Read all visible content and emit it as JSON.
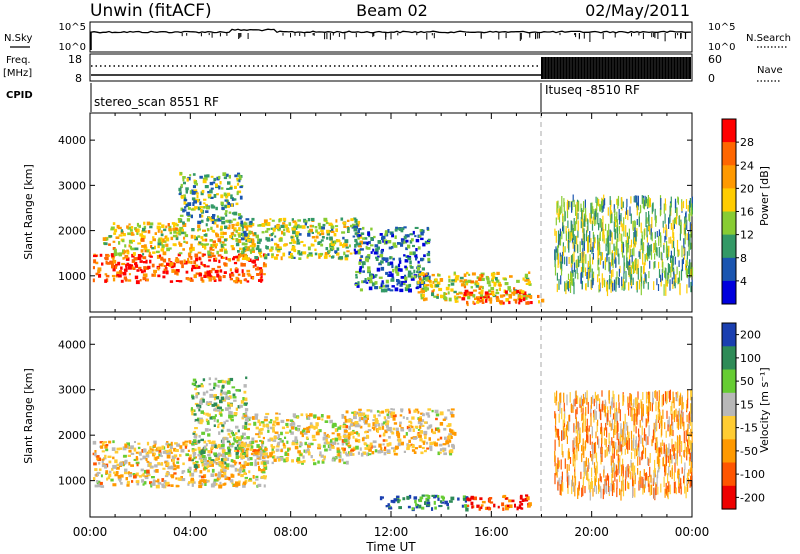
{
  "header": {
    "station": "Unwin (fitACF)",
    "beam": "Beam 02",
    "date": "02/May/2011"
  },
  "strip": {
    "nsky_label": "N.Sky",
    "nsky_ticks": [
      "10^5",
      "10^0"
    ],
    "nsearch_label": "N.Search",
    "nsearch_ticks": [
      "10^5",
      "10^0"
    ],
    "freq_label": "Freq.",
    "freq_unit": "[MHz]",
    "freq_ticks": [
      "18",
      "8"
    ],
    "nave_label": "Nave",
    "nave_ticks": [
      "60",
      "0"
    ],
    "cpid_label": "CPID",
    "cpid_blocks": [
      "stereo_scan 8551 RF",
      "Ituseq -8510 RF"
    ]
  },
  "chart_data": [
    {
      "type": "heatmap",
      "name": "power",
      "ylabel": "Slant Range [km]",
      "ylim": [
        200,
        4600
      ],
      "yticks": [
        "4000",
        "3000",
        "2000",
        "1000"
      ],
      "xlabel": "",
      "xticks": [
        "00:00",
        "04:00",
        "08:00",
        "12:00",
        "16:00",
        "20:00",
        "00:00"
      ],
      "x_hours": [
        0,
        24
      ],
      "colorbar": {
        "label": "Power [dB]",
        "ticks": [
          "28",
          "24",
          "20",
          "16",
          "12",
          "8",
          "4"
        ],
        "colors": [
          "#ff0000",
          "#ff6600",
          "#ff9900",
          "#ffcc00",
          "#88cc33",
          "#339966",
          "#1a55b0",
          "#0000dd"
        ]
      },
      "regions": [
        {
          "x": [
            0.1,
            7.0
          ],
          "y": [
            900,
            1500
          ],
          "level": 0.85
        },
        {
          "x": [
            0.5,
            6.5
          ],
          "y": [
            1500,
            2200
          ],
          "level": 0.55
        },
        {
          "x": [
            3.5,
            6.0
          ],
          "y": [
            2200,
            3300
          ],
          "level": 0.35
        },
        {
          "x": [
            6.0,
            10.8
          ],
          "y": [
            1400,
            2300
          ],
          "level": 0.45
        },
        {
          "x": [
            10.5,
            13.5
          ],
          "y": [
            700,
            2100
          ],
          "level": 0.25
        },
        {
          "x": [
            13.0,
            17.5
          ],
          "y": [
            500,
            1100
          ],
          "level": 0.55
        },
        {
          "x": [
            14.5,
            18.0
          ],
          "y": [
            400,
            700
          ],
          "level": 0.8
        },
        {
          "x": [
            18.5,
            24.0
          ],
          "y": [
            800,
            2800
          ],
          "level": 0.4
        }
      ]
    },
    {
      "type": "heatmap",
      "name": "velocity",
      "ylabel": "Slant Range [km]",
      "ylim": [
        200,
        4600
      ],
      "yticks": [
        "4000",
        "3000",
        "2000",
        "1000"
      ],
      "xlabel": "Time UT",
      "xticks": [
        "00:00",
        "04:00",
        "08:00",
        "12:00",
        "16:00",
        "20:00",
        "00:00"
      ],
      "x_hours": [
        0,
        24
      ],
      "colorbar": {
        "label": "Velocity [m s⁻¹]",
        "ticks": [
          "200",
          "100",
          "50",
          "15",
          "-15",
          "-50",
          "-100",
          "-200"
        ],
        "colors": [
          "#1a3fb0",
          "#2e8b57",
          "#66cc33",
          "#b8b8b8",
          "#ffcc33",
          "#ff9900",
          "#ff5500",
          "#ee0000"
        ]
      },
      "regions": [
        {
          "x": [
            0.1,
            7.0
          ],
          "y": [
            900,
            1900
          ],
          "level": 0.45
        },
        {
          "x": [
            4.0,
            6.2
          ],
          "y": [
            1300,
            3300
          ],
          "level": 0.62
        },
        {
          "x": [
            6.0,
            10.5
          ],
          "y": [
            1400,
            2500
          ],
          "level": 0.5
        },
        {
          "x": [
            10.0,
            14.5
          ],
          "y": [
            1600,
            2600
          ],
          "level": 0.45
        },
        {
          "x": [
            11.5,
            15.0
          ],
          "y": [
            400,
            700
          ],
          "level": 0.85
        },
        {
          "x": [
            15.0,
            17.5
          ],
          "y": [
            400,
            700
          ],
          "level": 0.15
        },
        {
          "x": [
            18.5,
            24.0
          ],
          "y": [
            800,
            3000
          ],
          "level": 0.35
        }
      ]
    }
  ]
}
